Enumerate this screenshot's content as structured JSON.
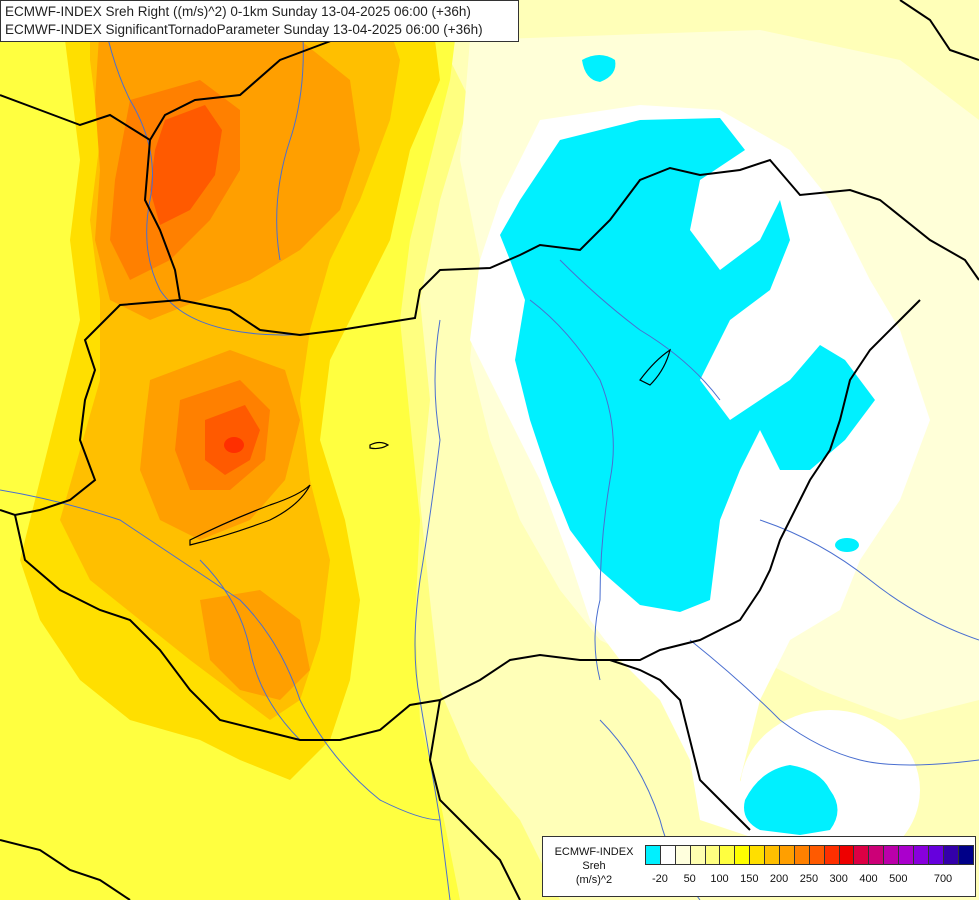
{
  "header": {
    "line1": "ECMWF-INDEX Sreh Right ((m/s)^2) 0-1km Sunday 13-04-2025 06:00 (+36h)",
    "line2": "ECMWF-INDEX SignificantTornadoParameter Sunday 13-04-2025 06:00 (+36h)"
  },
  "legend": {
    "source": "ECMWF-INDEX",
    "variable": "Sreh",
    "unit": "(m/s)^2",
    "colors": [
      "#00f0ff",
      "#ffffff",
      "#ffffdd",
      "#ffffb0",
      "#ffff80",
      "#ffff40",
      "#ffff00",
      "#ffdf00",
      "#ffbf00",
      "#ff9f00",
      "#ff8000",
      "#ff5a00",
      "#ff2f00",
      "#ee0000",
      "#dd0044",
      "#cc0077",
      "#bb00aa",
      "#aa00cc",
      "#8800dd",
      "#6600dd",
      "#3300aa",
      "#000088"
    ],
    "ticks": [
      {
        "label": "-20",
        "i": 0
      },
      {
        "label": "50",
        "i": 2
      },
      {
        "label": "100",
        "i": 4
      },
      {
        "label": "150",
        "i": 6
      },
      {
        "label": "200",
        "i": 8
      },
      {
        "label": "250",
        "i": 10
      },
      {
        "label": "300",
        "i": 12
      },
      {
        "label": "400",
        "i": 14
      },
      {
        "label": "500",
        "i": 16
      },
      {
        "label": "700",
        "i": 19
      }
    ]
  }
}
